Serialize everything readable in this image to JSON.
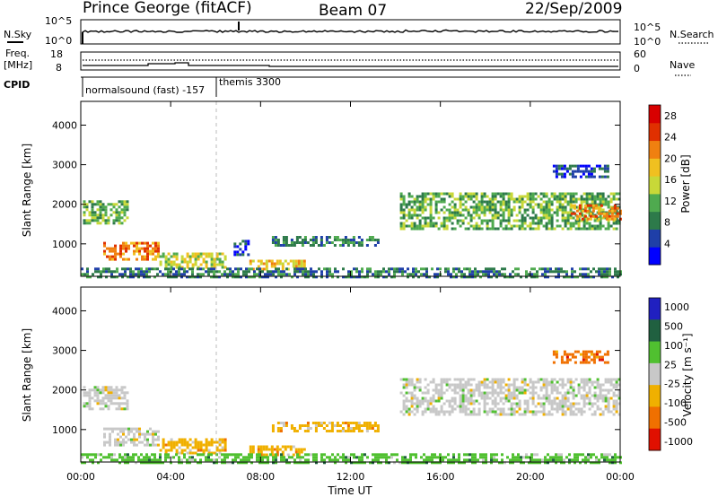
{
  "header": {
    "station": "Prince George (fitACF)",
    "beam": "Beam 07",
    "date": "22/Sep/2009"
  },
  "sky_panel": {
    "left_label": "N.Sky",
    "left_ticks": [
      "10^5",
      "10^0"
    ],
    "right_ticks": [
      "10^5",
      "10^0"
    ],
    "right_label": "N.Search"
  },
  "freq_panel": {
    "left_label_1": "Freq.",
    "left_label_2": "[MHz]",
    "left_ticks": [
      "18",
      "8"
    ],
    "right_ticks": [
      "60",
      "0"
    ],
    "right_label": "Nave"
  },
  "cpid": {
    "label": "CPID",
    "mode_1": "normalsound (fast) -157",
    "mode_2": "themis 3300"
  },
  "colors": {
    "power_scale": [
      "#0000ff",
      "#1f3fa8",
      "#2d7a4a",
      "#4faa4f",
      "#c8d838",
      "#f0c020",
      "#f08010",
      "#e03000",
      "#d80000"
    ],
    "velocity_scale": [
      "#2020c0",
      "#206040",
      "#50c030",
      "#c8c8c8",
      "#f0b000",
      "#f07000",
      "#e01000"
    ]
  },
  "chart_data": [
    {
      "type": "heatmap",
      "title": "",
      "ylabel": "Slant Range [km]",
      "xlabel": "",
      "x_ticks": [
        "00:00",
        "04:00",
        "08:00",
        "12:00",
        "16:00",
        "20:00",
        "00:00"
      ],
      "y_ticks": [
        "1000",
        "2000",
        "3000",
        "4000"
      ],
      "ylim": [
        180,
        4600
      ],
      "xlim_hours": [
        0,
        24
      ],
      "colorbar": {
        "label": "Power [dB]",
        "ticks": [
          "4",
          "8",
          "12",
          "16",
          "20",
          "24",
          "28"
        ],
        "range": [
          0,
          30
        ]
      },
      "regions": [
        {
          "t0": 0.1,
          "t1": 2.1,
          "r0": 1500,
          "r1": 2100,
          "level": 12,
          "color_index": 3
        },
        {
          "t0": 1.0,
          "t1": 3.4,
          "r0": 620,
          "r1": 1050,
          "level": 22,
          "color_index": 6
        },
        {
          "t0": 3.5,
          "t1": 6.4,
          "r0": 380,
          "r1": 780,
          "level": 15,
          "color_index": 4
        },
        {
          "t0": 6.8,
          "t1": 7.4,
          "r0": 700,
          "r1": 1100,
          "level": 6,
          "color_index": 1
        },
        {
          "t0": 7.5,
          "t1": 10.0,
          "r0": 330,
          "r1": 600,
          "level": 18,
          "color_index": 5
        },
        {
          "t0": 8.5,
          "t1": 13.2,
          "r0": 960,
          "r1": 1200,
          "level": 9,
          "color_index": 2
        },
        {
          "t0": 14.2,
          "t1": 24.0,
          "r0": 1400,
          "r1": 2300,
          "level": 12,
          "color_index": 3
        },
        {
          "t0": 21.8,
          "t1": 24.0,
          "r0": 1650,
          "r1": 2000,
          "level": 20,
          "color_index": 6
        },
        {
          "t0": 0.0,
          "t1": 24.0,
          "r0": 180,
          "r1": 400,
          "level": 8,
          "color_index": 2
        },
        {
          "t0": 21.0,
          "t1": 23.5,
          "r0": 2700,
          "r1": 3000,
          "level": 5,
          "color_index": 1
        }
      ]
    },
    {
      "type": "heatmap",
      "title": "",
      "ylabel": "Slant Range [km]",
      "xlabel": "Time UT",
      "x_ticks": [
        "00:00",
        "04:00",
        "08:00",
        "12:00",
        "16:00",
        "20:00",
        "00:00"
      ],
      "y_ticks": [
        "1000",
        "2000",
        "3000",
        "4000"
      ],
      "ylim": [
        180,
        4600
      ],
      "xlim_hours": [
        0,
        24
      ],
      "colorbar": {
        "label": "Velocity [m s⁻¹]",
        "ticks": [
          "1000",
          "500",
          "100",
          "25",
          "-25",
          "-100",
          "-500",
          "-1000"
        ]
      },
      "regions": [
        {
          "t0": 0.1,
          "t1": 2.1,
          "r0": 1500,
          "r1": 2100,
          "value": 0,
          "color_index": 3
        },
        {
          "t0": 1.0,
          "t1": 3.4,
          "r0": 620,
          "r1": 1050,
          "value": 0,
          "color_index": 3
        },
        {
          "t0": 3.5,
          "t1": 6.4,
          "r0": 380,
          "r1": 780,
          "value": -100,
          "color_index": 4
        },
        {
          "t0": 7.5,
          "t1": 10.0,
          "r0": 330,
          "r1": 600,
          "value": -100,
          "color_index": 4
        },
        {
          "t0": 8.5,
          "t1": 13.2,
          "r0": 960,
          "r1": 1200,
          "value": -50,
          "color_index": 4
        },
        {
          "t0": 14.2,
          "t1": 24.0,
          "r0": 1400,
          "r1": 2300,
          "value": 0,
          "color_index": 3
        },
        {
          "t0": 0.0,
          "t1": 24.0,
          "r0": 180,
          "r1": 400,
          "value": 100,
          "color_index": 2
        },
        {
          "t0": 21.0,
          "t1": 23.5,
          "r0": 2700,
          "r1": 3000,
          "value": -200,
          "color_index": 5
        }
      ]
    }
  ]
}
